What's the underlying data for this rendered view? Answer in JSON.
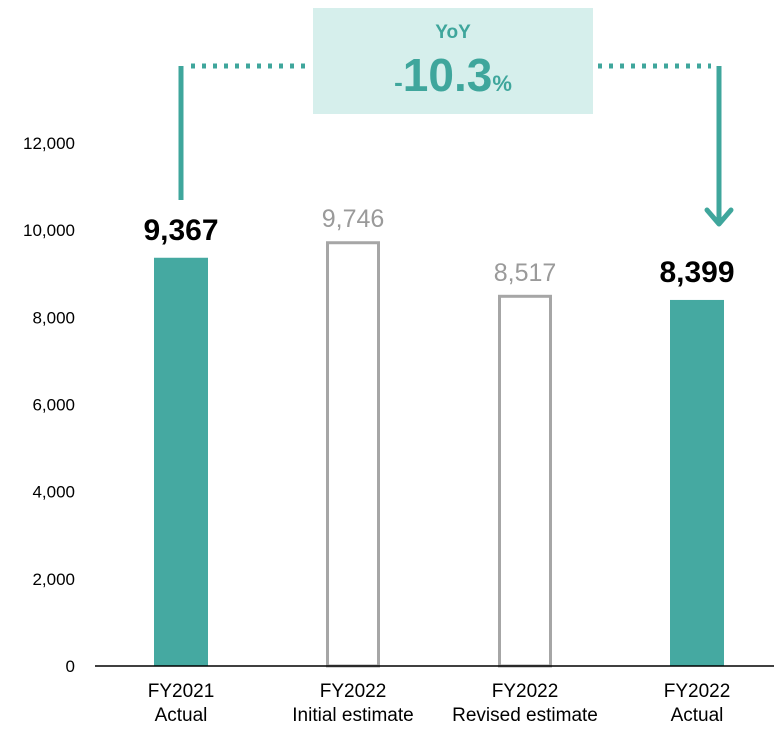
{
  "chart_data": {
    "type": "bar",
    "categories": [
      [
        "FY2021",
        "Actual"
      ],
      [
        "FY2022",
        "Initial estimate"
      ],
      [
        "FY2022",
        "Revised estimate"
      ],
      [
        "FY2022",
        "Actual"
      ]
    ],
    "values": [
      9367,
      9746,
      8517,
      8399
    ],
    "value_labels": [
      "9,367",
      "9,746",
      "8,517",
      "8,399"
    ],
    "bar_styles": [
      "filled",
      "outline",
      "outline",
      "filled"
    ],
    "ylim": [
      0,
      12000
    ],
    "yticks": [
      0,
      2000,
      4000,
      6000,
      8000,
      10000,
      12000
    ],
    "ytick_labels": [
      "0",
      "2,000",
      "4,000",
      "6,000",
      "8,000",
      "10,000",
      "12,000"
    ],
    "grid": false,
    "xlabel": "",
    "ylabel": "",
    "colors": {
      "filled": "#45a9a1",
      "outline": "#a6a6a6",
      "accent": "#3fa69c",
      "box": "#d6efec"
    }
  },
  "yoy": {
    "title": "YoY",
    "sign": "-",
    "value": "10.3",
    "unit": "%"
  }
}
